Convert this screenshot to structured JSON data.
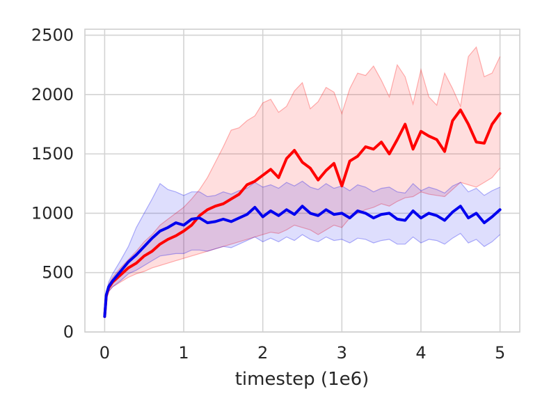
{
  "chart_data": {
    "type": "line",
    "title": "",
    "xlabel": "timestep (1e6)",
    "ylabel": "",
    "xlim": [
      -0.25,
      5.25
    ],
    "ylim": [
      0,
      2550
    ],
    "x_ticks": [
      0,
      1,
      2,
      3,
      4,
      5
    ],
    "y_ticks": [
      0,
      500,
      1000,
      1500,
      2000,
      2500
    ],
    "grid": true,
    "legend": "none",
    "series": [
      {
        "color": "#ff0000",
        "band_color": "#ff0000",
        "x": [
          0,
          0.02,
          0.05,
          0.1,
          0.2,
          0.3,
          0.4,
          0.5,
          0.6,
          0.7,
          0.8,
          0.9,
          1.0,
          1.1,
          1.2,
          1.3,
          1.4,
          1.5,
          1.6,
          1.7,
          1.8,
          1.9,
          2.0,
          2.1,
          2.2,
          2.3,
          2.4,
          2.5,
          2.6,
          2.7,
          2.8,
          2.9,
          3.0,
          3.1,
          3.2,
          3.3,
          3.4,
          3.5,
          3.6,
          3.7,
          3.8,
          3.9,
          4.0,
          4.1,
          4.2,
          4.3,
          4.4,
          4.5,
          4.6,
          4.7,
          4.8,
          4.9,
          5.0
        ],
        "y": [
          130,
          300,
          370,
          420,
          480,
          540,
          580,
          640,
          680,
          740,
          780,
          810,
          850,
          900,
          980,
          1030,
          1060,
          1080,
          1120,
          1160,
          1240,
          1270,
          1320,
          1370,
          1300,
          1460,
          1530,
          1430,
          1380,
          1280,
          1360,
          1420,
          1230,
          1440,
          1480,
          1560,
          1540,
          1600,
          1500,
          1620,
          1750,
          1540,
          1690,
          1650,
          1620,
          1520,
          1780,
          1870,
          1750,
          1600,
          1590,
          1750,
          1840
        ],
        "upper": [
          140,
          320,
          400,
          460,
          540,
          610,
          680,
          760,
          820,
          900,
          950,
          1000,
          1050,
          1120,
          1200,
          1300,
          1430,
          1560,
          1700,
          1720,
          1780,
          1820,
          1930,
          1960,
          1850,
          1900,
          2030,
          2100,
          1880,
          1940,
          2060,
          2020,
          1840,
          2050,
          2180,
          2160,
          2240,
          2120,
          1980,
          2250,
          2150,
          1920,
          2210,
          1980,
          1910,
          2180,
          2050,
          1900,
          2320,
          2400,
          2150,
          2180,
          2320
        ],
        "lower": [
          120,
          280,
          340,
          380,
          420,
          460,
          490,
          510,
          540,
          560,
          580,
          600,
          620,
          640,
          660,
          680,
          700,
          720,
          740,
          760,
          780,
          800,
          820,
          840,
          830,
          860,
          900,
          880,
          860,
          820,
          860,
          900,
          880,
          960,
          1000,
          1030,
          1050,
          1080,
          1060,
          1100,
          1130,
          1140,
          1180,
          1160,
          1150,
          1140,
          1200,
          1260,
          1240,
          1220,
          1260,
          1300,
          1380
        ]
      },
      {
        "color": "#0000ee",
        "band_color": "#0000ee",
        "x": [
          0,
          0.02,
          0.05,
          0.1,
          0.2,
          0.3,
          0.4,
          0.5,
          0.6,
          0.7,
          0.8,
          0.9,
          1.0,
          1.1,
          1.2,
          1.3,
          1.4,
          1.5,
          1.6,
          1.7,
          1.8,
          1.9,
          2.0,
          2.1,
          2.2,
          2.3,
          2.4,
          2.5,
          2.6,
          2.7,
          2.8,
          2.9,
          3.0,
          3.1,
          3.2,
          3.3,
          3.4,
          3.5,
          3.6,
          3.7,
          3.8,
          3.9,
          4.0,
          4.1,
          4.2,
          4.3,
          4.4,
          4.5,
          4.6,
          4.7,
          4.8,
          4.9,
          5.0
        ],
        "y": [
          130,
          310,
          380,
          430,
          510,
          590,
          650,
          720,
          790,
          850,
          880,
          920,
          900,
          950,
          960,
          920,
          930,
          950,
          930,
          960,
          990,
          1050,
          970,
          1020,
          980,
          1030,
          990,
          1060,
          1000,
          980,
          1030,
          990,
          1000,
          960,
          1020,
          1000,
          960,
          990,
          1000,
          950,
          940,
          1020,
          960,
          1000,
          980,
          940,
          1010,
          1060,
          960,
          1000,
          920,
          970,
          1030
        ],
        "upper": [
          140,
          330,
          420,
          490,
          600,
          720,
          880,
          1000,
          1120,
          1250,
          1200,
          1180,
          1150,
          1180,
          1180,
          1140,
          1150,
          1180,
          1160,
          1190,
          1210,
          1260,
          1220,
          1240,
          1210,
          1260,
          1230,
          1270,
          1220,
          1200,
          1250,
          1210,
          1230,
          1190,
          1240,
          1220,
          1180,
          1210,
          1220,
          1180,
          1170,
          1250,
          1190,
          1220,
          1200,
          1170,
          1230,
          1260,
          1180,
          1210,
          1150,
          1190,
          1220
        ],
        "lower": [
          120,
          290,
          340,
          380,
          430,
          490,
          520,
          560,
          600,
          640,
          650,
          660,
          660,
          690,
          690,
          680,
          700,
          720,
          710,
          740,
          770,
          800,
          760,
          790,
          760,
          800,
          770,
          820,
          780,
          760,
          800,
          770,
          780,
          750,
          790,
          780,
          750,
          770,
          780,
          740,
          740,
          800,
          750,
          780,
          770,
          740,
          790,
          830,
          750,
          780,
          720,
          760,
          820
        ]
      }
    ]
  }
}
